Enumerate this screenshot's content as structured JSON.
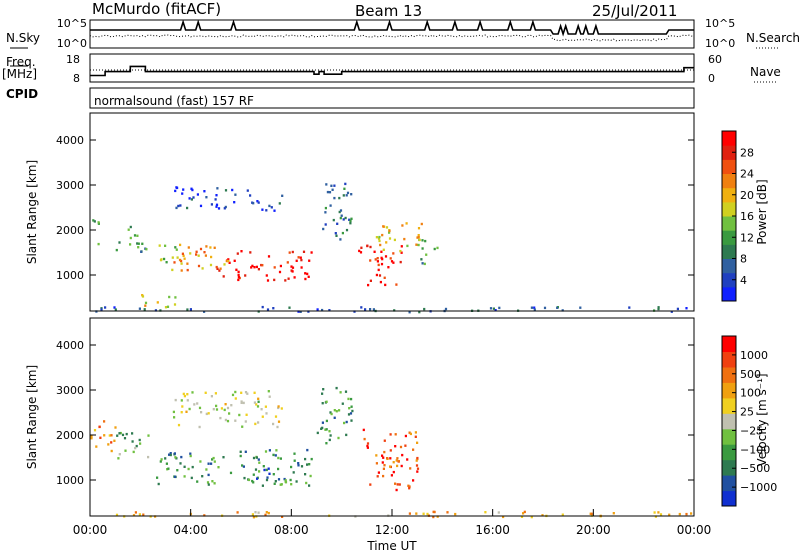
{
  "header": {
    "station": "McMurdo (fitACF)",
    "beam": "Beam 13",
    "date": "25/Jul/2011"
  },
  "mode_label": "normalsound (fast) 157 RF",
  "left_labels": {
    "nsky": "N.Sky",
    "freq": "Freq.",
    "freq_unit": "[MHz]",
    "cpid": "CPID"
  },
  "right_labels": {
    "nsearch": "N.Search",
    "nave": "Nave"
  },
  "chart_data": [
    {
      "type": "line",
      "panel": "noise",
      "series": [
        {
          "name": "N.Sky",
          "style": "solid"
        },
        {
          "name": "N.Search",
          "style": "dotted"
        }
      ],
      "x": [
        0,
        1,
        2,
        3,
        4,
        5,
        6,
        7,
        8,
        9,
        10,
        11,
        12,
        13,
        14,
        15,
        16,
        17,
        18,
        19,
        20,
        21,
        22,
        23,
        24
      ],
      "left_ticks": [
        "10^5",
        "10^0"
      ],
      "right_ticks": [
        "10^5",
        "10^0"
      ]
    },
    {
      "type": "line",
      "panel": "frequency",
      "series": [
        {
          "name": "Freq.",
          "style": "solid",
          "x": [
            0,
            0.6,
            1.0,
            1.6,
            2.2,
            2.6,
            3.4,
            8.6,
            8.9,
            9.1,
            9.3,
            10.0,
            14.5,
            18.4,
            23.6,
            24
          ],
          "values": [
            10.5,
            12.0,
            12.0,
            14.0,
            12.0,
            12.0,
            12.0,
            12.0,
            11.0,
            12.0,
            11.0,
            12.0,
            12.0,
            12.0,
            13.5,
            13.5
          ]
        },
        {
          "name": "Nave",
          "style": "dotted",
          "x": [
            0,
            24
          ],
          "values": [
            12,
            12
          ]
        }
      ],
      "left_ticks": [
        "18",
        "8"
      ],
      "right_ticks": [
        "60",
        "0"
      ]
    },
    {
      "type": "heatmap",
      "panel": "power",
      "ylabel": "Slant Range [km]",
      "yticks": [
        1000,
        2000,
        3000,
        4000
      ],
      "ylim": [
        200,
        4600
      ],
      "xlim": [
        0,
        24
      ],
      "colorbar_label": "Power [dB]",
      "colorbar_ticks": [
        "28",
        "24",
        "20",
        "16",
        "12",
        "8",
        "4"
      ],
      "colorbar_colors": [
        "#1020ff",
        "#2040c0",
        "#3060a0",
        "#2e7a50",
        "#3a9a40",
        "#70c040",
        "#d0d020",
        "#f0b010",
        "#f08010",
        "#f05010",
        "#e02010",
        "#ff0000"
      ],
      "patches": [
        {
          "t0": 5.0,
          "t1": 8.8,
          "r0": 900,
          "r1": 1600,
          "level": 0.95
        },
        {
          "t0": 3.2,
          "t1": 5.5,
          "r0": 1100,
          "r1": 1700,
          "level": 0.7
        },
        {
          "t0": 2.6,
          "t1": 3.6,
          "r0": 1300,
          "r1": 1800,
          "level": 0.5
        },
        {
          "t0": 10.6,
          "t1": 12.4,
          "r0": 800,
          "r1": 1700,
          "level": 0.95
        },
        {
          "t0": 11.3,
          "t1": 13.2,
          "r0": 1500,
          "r1": 2200,
          "level": 0.6
        },
        {
          "t0": 3.2,
          "t1": 6.5,
          "r0": 2500,
          "r1": 3000,
          "level": 0.12
        },
        {
          "t0": 6.2,
          "t1": 7.6,
          "r0": 2400,
          "r1": 2800,
          "level": 0.15
        },
        {
          "t0": 1.0,
          "t1": 2.2,
          "r0": 1500,
          "r1": 2100,
          "level": 0.35
        },
        {
          "t0": 0.0,
          "t1": 0.4,
          "r0": 1700,
          "r1": 2300,
          "level": 0.45
        },
        {
          "t0": 9.2,
          "t1": 10.4,
          "r0": 1800,
          "r1": 3200,
          "level": 0.25
        },
        {
          "t0": 13.0,
          "t1": 14.0,
          "r0": 1200,
          "r1": 1800,
          "level": 0.35
        },
        {
          "t0": 2.0,
          "t1": 3.4,
          "r0": 250,
          "r1": 600,
          "level": 0.55
        },
        {
          "t0": 0.0,
          "t1": 24.0,
          "r0": 200,
          "r1": 320,
          "level": 0.2
        }
      ]
    },
    {
      "type": "heatmap",
      "panel": "velocity",
      "ylabel": "Slant Range [km]",
      "yticks": [
        1000,
        2000,
        3000,
        4000
      ],
      "ylim": [
        200,
        4600
      ],
      "xlim": [
        0,
        24
      ],
      "xticks": [
        "00:00",
        "04:00",
        "08:00",
        "12:00",
        "16:00",
        "20:00",
        "00:00"
      ],
      "xlabel": "Time UT",
      "colorbar_label": "Velocity [m s⁻¹]",
      "colorbar_ticks": [
        "1000",
        "500",
        "100",
        "25",
        "−25",
        "−100",
        "−500",
        "−1000"
      ],
      "colorbar_colors": [
        "#1030d0",
        "#2050a0",
        "#2e7a50",
        "#3a9a40",
        "#70c040",
        "#c0c0b0",
        "#f0d020",
        "#f0a010",
        "#f07010",
        "#f04010",
        "#ff0000"
      ],
      "patches": [
        {
          "t0": 2.6,
          "t1": 8.8,
          "r0": 900,
          "r1": 1700,
          "level": 0.28
        },
        {
          "t0": 6.5,
          "t1": 7.2,
          "r0": 1000,
          "r1": 1500,
          "level": 0.05
        },
        {
          "t0": 10.8,
          "t1": 13.0,
          "r0": 800,
          "r1": 2200,
          "level": 0.8
        },
        {
          "t0": 3.2,
          "t1": 7.6,
          "r0": 2200,
          "r1": 3000,
          "level": 0.5
        },
        {
          "t0": 0.0,
          "t1": 1.0,
          "r0": 1600,
          "r1": 2400,
          "level": 0.75
        },
        {
          "t0": 1.0,
          "t1": 2.4,
          "r0": 1500,
          "r1": 2100,
          "level": 0.35
        },
        {
          "t0": 9.0,
          "t1": 10.4,
          "r0": 1800,
          "r1": 3100,
          "level": 0.3
        },
        {
          "t0": 0.0,
          "t1": 24.0,
          "r0": 200,
          "r1": 320,
          "level": 0.65
        }
      ]
    }
  ]
}
